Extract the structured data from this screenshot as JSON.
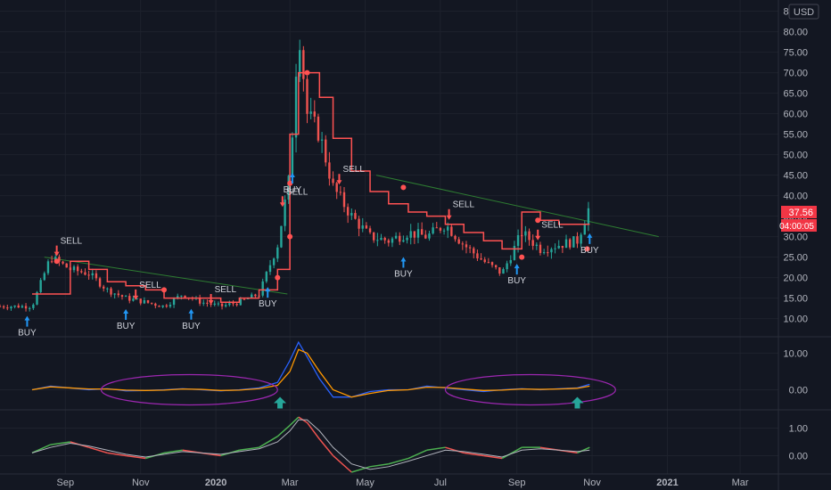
{
  "currency_badge": "USD",
  "price_tag": {
    "price": "37.56",
    "countdown": "04:00:05"
  },
  "colors": {
    "background": "#131722",
    "grid": "#1e222d",
    "up": "#26a69a",
    "down": "#ef5350",
    "stop_line": "#ff5252",
    "trendline": "#2e7d32",
    "buy_arrow": "#2196f3",
    "sell_arrow": "#ff5252",
    "macd": "#2962ff",
    "signal": "#ff9800",
    "ellipse": "#9c27b0",
    "teal_arrow": "#26a69a",
    "osc_up": "#4caf50",
    "osc_down": "#ef5350",
    "osc_line": "#b2b5be"
  },
  "chart_data": [
    {
      "type": "candlestick",
      "title": "",
      "x": [
        "2019-08-05",
        "2019-08-20",
        "2019-09-05",
        "2019-09-20",
        "2019-10-05",
        "2019-10-20",
        "2019-11-05",
        "2019-11-20",
        "2019-12-05",
        "2019-12-20",
        "2020-01-05",
        "2020-01-20",
        "2020-02-05",
        "2020-02-20",
        "2020-03-01",
        "2020-03-08",
        "2020-03-15",
        "2020-03-25",
        "2020-04-05",
        "2020-04-20",
        "2020-05-05",
        "2020-05-20",
        "2020-06-05",
        "2020-06-20",
        "2020-07-05",
        "2020-07-20",
        "2020-08-05",
        "2020-08-20",
        "2020-09-05",
        "2020-09-20",
        "2020-10-05",
        "2020-10-20",
        "2020-10-30"
      ],
      "close": [
        13,
        25,
        22,
        21,
        17,
        15,
        14,
        13,
        16,
        14,
        13,
        14,
        16,
        28,
        45,
        82,
        60,
        55,
        42,
        35,
        30,
        29,
        31,
        30,
        33,
        28,
        24,
        21,
        31,
        27,
        28,
        29,
        37.56
      ],
      "y_axis": {
        "ticks": [
          "10.00",
          "15.00",
          "20.00",
          "25.00",
          "30.00",
          "35.00",
          "40.00",
          "45.00",
          "50.00",
          "55.00",
          "60.00",
          "65.00",
          "70.00",
          "75.00",
          "80.00",
          "85.00"
        ],
        "ylim": [
          6,
          86
        ]
      },
      "x_axis": {
        "ticks": [
          "Sep",
          "Nov",
          "2020",
          "Mar",
          "May",
          "Jul",
          "Sep",
          "Nov",
          "2021",
          "Mar"
        ]
      },
      "stop_line": [
        16,
        16,
        24,
        22,
        19,
        18,
        17,
        15,
        15,
        15,
        14,
        15,
        17,
        22,
        55,
        70,
        70,
        64,
        54,
        46,
        41,
        38,
        36,
        35,
        33,
        31,
        29,
        27,
        36,
        34,
        33,
        33,
        33
      ],
      "trendlines": [
        {
          "from": [
            "2019-08-15",
            25
          ],
          "to": [
            "2020-02-28",
            16
          ]
        },
        {
          "from": [
            "2020-05-10",
            45
          ],
          "to": [
            "2020-12-25",
            30
          ]
        }
      ],
      "signals": [
        {
          "label": "BUY",
          "x": "2019-08-01",
          "position": "below"
        },
        {
          "label": "SELL",
          "x": "2019-08-25",
          "position": "above"
        },
        {
          "label": "SELL",
          "x": "2019-10-28",
          "position": "above"
        },
        {
          "label": "BUY",
          "x": "2019-10-20",
          "position": "below"
        },
        {
          "label": "BUY",
          "x": "2019-12-12",
          "position": "below"
        },
        {
          "label": "SELL",
          "x": "2019-12-28",
          "position": "above"
        },
        {
          "label": "BUY",
          "x": "2020-02-12",
          "position": "below"
        },
        {
          "label": "SELL",
          "x": "2020-02-24",
          "position": "above"
        },
        {
          "label": "BUY",
          "x": "2020-03-03",
          "position": "below"
        },
        {
          "label": "SELL",
          "x": "2020-04-10",
          "position": "above"
        },
        {
          "label": "BUY",
          "x": "2020-06-01",
          "position": "below"
        },
        {
          "label": "SELL",
          "x": "2020-07-08",
          "position": "above"
        },
        {
          "label": "BUY",
          "x": "2020-09-01",
          "position": "below"
        },
        {
          "label": "SELL",
          "x": "2020-09-18",
          "position": "above"
        },
        {
          "label": "BUY",
          "x": "2020-10-30",
          "position": "below"
        }
      ]
    },
    {
      "type": "line",
      "title": "",
      "y_axis": {
        "ticks": [
          "10.00",
          "0.00"
        ],
        "ylim": [
          -5,
          14
        ]
      },
      "series": [
        {
          "values": [
            0,
            1,
            0.5,
            0,
            0.3,
            -0.3,
            -0.2,
            0,
            0.3,
            0,
            -0.3,
            0,
            0.5,
            2,
            8,
            13,
            9,
            3,
            -2,
            -2,
            -0.5,
            0,
            0,
            1,
            0.5,
            0,
            -0.5,
            0,
            0.3,
            0,
            0.3,
            0.5,
            1.5
          ]
        },
        {
          "values": [
            0,
            0.8,
            0.5,
            0.2,
            0.2,
            -0.1,
            -0.2,
            -0.1,
            0.2,
            0.1,
            -0.2,
            -0.1,
            0.3,
            1.2,
            5,
            11,
            10,
            5,
            0,
            -2,
            -1,
            -0.2,
            0,
            0.7,
            0.6,
            0.2,
            -0.2,
            -0.1,
            0.2,
            0.1,
            0.2,
            0.4,
            1.0
          ]
        }
      ],
      "ellipses": [
        {
          "x_from": "2019-09-30",
          "x_to": "2020-02-20",
          "y_center": 0
        },
        {
          "x_from": "2020-07-05",
          "x_to": "2020-11-20",
          "y_center": 0
        }
      ],
      "arrows_at": [
        "2020-02-22",
        "2020-10-20"
      ]
    },
    {
      "type": "line",
      "title": "",
      "y_axis": {
        "ticks": [
          "1.00",
          "0.00"
        ],
        "ylim": [
          -0.6,
          1.6
        ]
      },
      "series": [
        {
          "values": [
            0.1,
            0.4,
            0.5,
            0.3,
            0.1,
            0.0,
            -0.1,
            0.1,
            0.2,
            0.1,
            0.0,
            0.2,
            0.3,
            0.7,
            1.1,
            1.4,
            1.2,
            0.6,
            0.0,
            -0.6,
            -0.4,
            -0.3,
            -0.1,
            0.2,
            0.3,
            0.1,
            0.0,
            -0.1,
            0.3,
            0.3,
            0.2,
            0.1,
            0.3
          ]
        },
        {
          "values": [
            0.1,
            0.3,
            0.45,
            0.35,
            0.2,
            0.05,
            -0.05,
            0.05,
            0.15,
            0.1,
            0.05,
            0.15,
            0.25,
            0.5,
            0.9,
            1.3,
            1.3,
            0.9,
            0.3,
            -0.3,
            -0.5,
            -0.4,
            -0.2,
            0.0,
            0.2,
            0.15,
            0.05,
            -0.05,
            0.2,
            0.25,
            0.2,
            0.15,
            0.2
          ]
        }
      ]
    }
  ]
}
